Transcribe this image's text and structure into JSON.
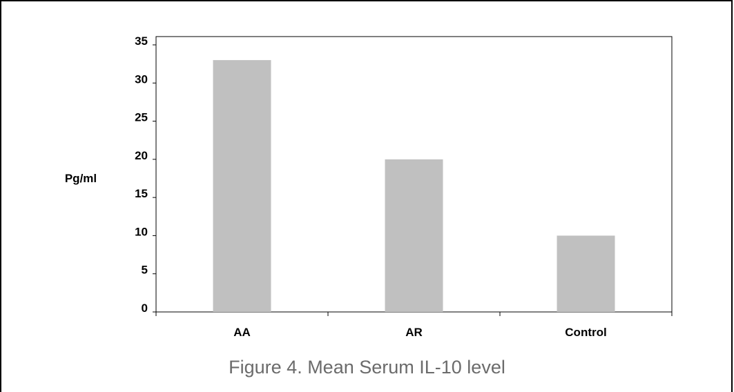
{
  "chart_data": {
    "type": "bar",
    "categories": [
      "AA",
      "AR",
      "Control"
    ],
    "values": [
      33,
      20,
      10
    ],
    "title": "",
    "xlabel": "",
    "ylabel": "Pg/ml",
    "ylim": [
      0,
      35
    ],
    "yticks": [
      0,
      5,
      10,
      15,
      20,
      25,
      30,
      35
    ],
    "grid": false,
    "legend": "none",
    "bar_color": "#c0c0c0"
  },
  "caption": "Figure 4. Mean Serum IL-10 level",
  "colors": {
    "axis": "#000000",
    "bar": "#c0c0c0",
    "caption": "#6b6b6b"
  }
}
